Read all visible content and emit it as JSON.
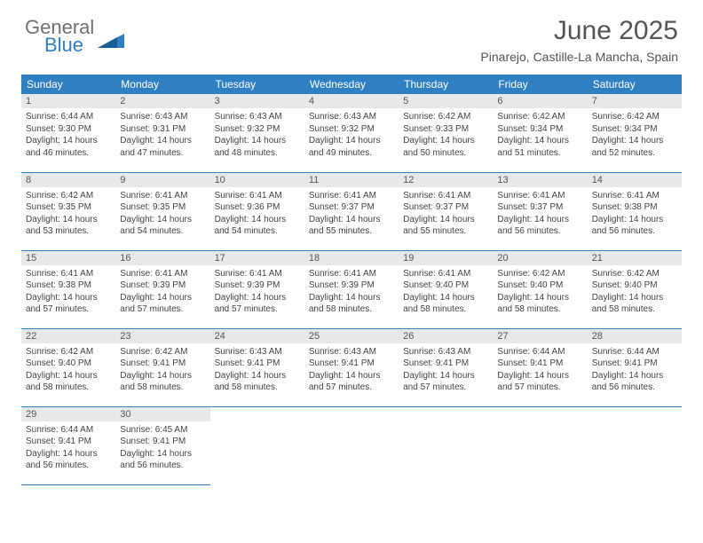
{
  "logo": {
    "line1": "General",
    "line2": "Blue",
    "color_general": "#707070",
    "color_blue": "#2f7fc3"
  },
  "header": {
    "title": "June 2025",
    "subtitle": "Pinarejo, Castille-La Mancha, Spain"
  },
  "styling": {
    "header_bg": "#2f7fc3",
    "header_text": "#ffffff",
    "daynum_bg": "#e8e8e8",
    "daynum_text": "#555555",
    "body_text": "#444444",
    "row_separator": "#2f7fc3",
    "th_fontsize": 12,
    "cell_fontsize": 10,
    "daynum_fontsize": 11
  },
  "weekdays": [
    "Sunday",
    "Monday",
    "Tuesday",
    "Wednesday",
    "Thursday",
    "Friday",
    "Saturday"
  ],
  "days": [
    {
      "n": 1,
      "sunrise": "6:44 AM",
      "sunset": "9:30 PM",
      "daylight": "14 hours and 46 minutes."
    },
    {
      "n": 2,
      "sunrise": "6:43 AM",
      "sunset": "9:31 PM",
      "daylight": "14 hours and 47 minutes."
    },
    {
      "n": 3,
      "sunrise": "6:43 AM",
      "sunset": "9:32 PM",
      "daylight": "14 hours and 48 minutes."
    },
    {
      "n": 4,
      "sunrise": "6:43 AM",
      "sunset": "9:32 PM",
      "daylight": "14 hours and 49 minutes."
    },
    {
      "n": 5,
      "sunrise": "6:42 AM",
      "sunset": "9:33 PM",
      "daylight": "14 hours and 50 minutes."
    },
    {
      "n": 6,
      "sunrise": "6:42 AM",
      "sunset": "9:34 PM",
      "daylight": "14 hours and 51 minutes."
    },
    {
      "n": 7,
      "sunrise": "6:42 AM",
      "sunset": "9:34 PM",
      "daylight": "14 hours and 52 minutes."
    },
    {
      "n": 8,
      "sunrise": "6:42 AM",
      "sunset": "9:35 PM",
      "daylight": "14 hours and 53 minutes."
    },
    {
      "n": 9,
      "sunrise": "6:41 AM",
      "sunset": "9:35 PM",
      "daylight": "14 hours and 54 minutes."
    },
    {
      "n": 10,
      "sunrise": "6:41 AM",
      "sunset": "9:36 PM",
      "daylight": "14 hours and 54 minutes."
    },
    {
      "n": 11,
      "sunrise": "6:41 AM",
      "sunset": "9:37 PM",
      "daylight": "14 hours and 55 minutes."
    },
    {
      "n": 12,
      "sunrise": "6:41 AM",
      "sunset": "9:37 PM",
      "daylight": "14 hours and 55 minutes."
    },
    {
      "n": 13,
      "sunrise": "6:41 AM",
      "sunset": "9:37 PM",
      "daylight": "14 hours and 56 minutes."
    },
    {
      "n": 14,
      "sunrise": "6:41 AM",
      "sunset": "9:38 PM",
      "daylight": "14 hours and 56 minutes."
    },
    {
      "n": 15,
      "sunrise": "6:41 AM",
      "sunset": "9:38 PM",
      "daylight": "14 hours and 57 minutes."
    },
    {
      "n": 16,
      "sunrise": "6:41 AM",
      "sunset": "9:39 PM",
      "daylight": "14 hours and 57 minutes."
    },
    {
      "n": 17,
      "sunrise": "6:41 AM",
      "sunset": "9:39 PM",
      "daylight": "14 hours and 57 minutes."
    },
    {
      "n": 18,
      "sunrise": "6:41 AM",
      "sunset": "9:39 PM",
      "daylight": "14 hours and 58 minutes."
    },
    {
      "n": 19,
      "sunrise": "6:41 AM",
      "sunset": "9:40 PM",
      "daylight": "14 hours and 58 minutes."
    },
    {
      "n": 20,
      "sunrise": "6:42 AM",
      "sunset": "9:40 PM",
      "daylight": "14 hours and 58 minutes."
    },
    {
      "n": 21,
      "sunrise": "6:42 AM",
      "sunset": "9:40 PM",
      "daylight": "14 hours and 58 minutes."
    },
    {
      "n": 22,
      "sunrise": "6:42 AM",
      "sunset": "9:40 PM",
      "daylight": "14 hours and 58 minutes."
    },
    {
      "n": 23,
      "sunrise": "6:42 AM",
      "sunset": "9:41 PM",
      "daylight": "14 hours and 58 minutes."
    },
    {
      "n": 24,
      "sunrise": "6:43 AM",
      "sunset": "9:41 PM",
      "daylight": "14 hours and 58 minutes."
    },
    {
      "n": 25,
      "sunrise": "6:43 AM",
      "sunset": "9:41 PM",
      "daylight": "14 hours and 57 minutes."
    },
    {
      "n": 26,
      "sunrise": "6:43 AM",
      "sunset": "9:41 PM",
      "daylight": "14 hours and 57 minutes."
    },
    {
      "n": 27,
      "sunrise": "6:44 AM",
      "sunset": "9:41 PM",
      "daylight": "14 hours and 57 minutes."
    },
    {
      "n": 28,
      "sunrise": "6:44 AM",
      "sunset": "9:41 PM",
      "daylight": "14 hours and 56 minutes."
    },
    {
      "n": 29,
      "sunrise": "6:44 AM",
      "sunset": "9:41 PM",
      "daylight": "14 hours and 56 minutes."
    },
    {
      "n": 30,
      "sunrise": "6:45 AM",
      "sunset": "9:41 PM",
      "daylight": "14 hours and 56 minutes."
    }
  ],
  "labels": {
    "sunrise": "Sunrise:",
    "sunset": "Sunset:",
    "daylight": "Daylight:"
  }
}
